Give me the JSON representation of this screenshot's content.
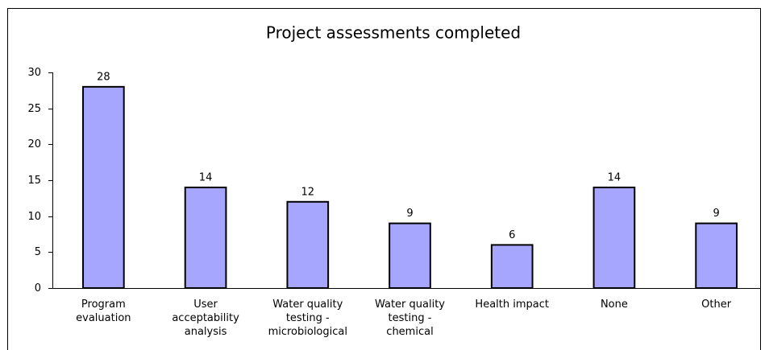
{
  "chart_data": {
    "type": "bar",
    "title": "Project assessments completed",
    "categories": [
      "Program evaluation",
      "User acceptability analysis",
      "Water quality testing - microbiological",
      "Water quality testing - chemical",
      "Health impact",
      "None",
      "Other"
    ],
    "values": [
      28,
      14,
      12,
      9,
      6,
      14,
      9
    ],
    "color": "#a6a6ff",
    "ylim": [
      0,
      30
    ],
    "yticks": [
      0,
      5,
      10,
      15,
      20,
      25,
      30
    ],
    "grid": false
  }
}
